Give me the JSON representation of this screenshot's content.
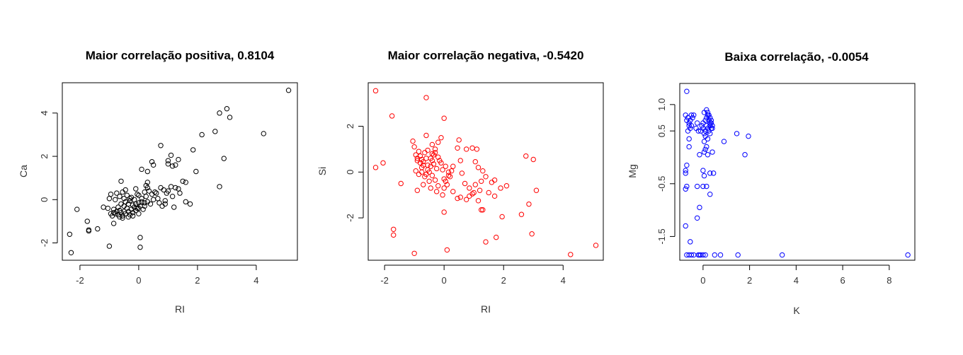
{
  "chart_data": [
    {
      "type": "scatter",
      "title": "Maior correlação positiva, 0.8104",
      "xlabel": "RI",
      "ylabel": "Ca",
      "color": "#000000",
      "xlim": [
        -2.6,
        5.4
      ],
      "ylim": [
        -2.8,
        5.4
      ],
      "xticks": [
        "-2",
        "0",
        "2",
        "4"
      ],
      "yticks": [
        "-2",
        "0",
        "2",
        "4"
      ],
      "points": [
        [
          5.1,
          5.05
        ],
        [
          3.0,
          4.2
        ],
        [
          3.1,
          3.8
        ],
        [
          2.75,
          4.0
        ],
        [
          4.25,
          3.05
        ],
        [
          2.6,
          3.15
        ],
        [
          2.15,
          3.0
        ],
        [
          2.9,
          1.9
        ],
        [
          2.75,
          0.6
        ],
        [
          1.85,
          2.3
        ],
        [
          1.95,
          1.3
        ],
        [
          1.6,
          0.8
        ],
        [
          1.75,
          -0.2
        ],
        [
          1.6,
          -0.1
        ],
        [
          0.75,
          2.5
        ],
        [
          1.0,
          1.65
        ],
        [
          1.15,
          1.55
        ],
        [
          1.35,
          1.85
        ],
        [
          1.25,
          1.6
        ],
        [
          1.0,
          1.8
        ],
        [
          1.1,
          2.05
        ],
        [
          0.45,
          1.75
        ],
        [
          0.5,
          1.6
        ],
        [
          0.3,
          1.3
        ],
        [
          0.1,
          1.4
        ],
        [
          0.75,
          0.55
        ],
        [
          0.85,
          0.45
        ],
        [
          1.0,
          0.4
        ],
        [
          1.1,
          0.6
        ],
        [
          1.25,
          0.55
        ],
        [
          1.35,
          0.5
        ],
        [
          0.95,
          0.3
        ],
        [
          1.15,
          0.15
        ],
        [
          0.9,
          -0.2
        ],
        [
          1.2,
          -0.35
        ],
        [
          0.8,
          -0.3
        ],
        [
          0.7,
          -0.15
        ],
        [
          0.5,
          0.0
        ],
        [
          0.6,
          0.3
        ],
        [
          0.3,
          0.55
        ],
        [
          0.2,
          0.35
        ],
        [
          0.45,
          0.25
        ],
        [
          0.3,
          -0.1
        ],
        [
          0.2,
          -0.3
        ],
        [
          0.0,
          0.2
        ],
        [
          0.1,
          -0.1
        ],
        [
          0.0,
          -0.4
        ],
        [
          0.05,
          -1.75
        ],
        [
          0.05,
          -2.2
        ],
        [
          -1.0,
          -2.15
        ],
        [
          -2.35,
          -1.6
        ],
        [
          -2.3,
          -2.45
        ],
        [
          -2.1,
          -0.45
        ],
        [
          -1.75,
          -1.0
        ],
        [
          -1.7,
          -1.45
        ],
        [
          -1.7,
          -1.4
        ],
        [
          -1.4,
          -1.35
        ],
        [
          -1.2,
          -0.35
        ],
        [
          -1.05,
          -0.4
        ],
        [
          -1.0,
          0.05
        ],
        [
          -0.95,
          0.25
        ],
        [
          -0.85,
          -0.45
        ],
        [
          -0.85,
          -0.6
        ],
        [
          -0.8,
          -0.65
        ],
        [
          -0.75,
          -0.55
        ],
        [
          -0.7,
          -0.7
        ],
        [
          -0.7,
          -0.35
        ],
        [
          -0.65,
          -0.5
        ],
        [
          -0.6,
          -0.2
        ],
        [
          -0.6,
          -0.6
        ],
        [
          -0.55,
          -0.75
        ],
        [
          -0.5,
          -0.3
        ],
        [
          -0.5,
          -0.55
        ],
        [
          -0.45,
          -0.65
        ],
        [
          -0.45,
          -0.1
        ],
        [
          -0.4,
          -0.4
        ],
        [
          -0.35,
          -0.55
        ],
        [
          -0.35,
          -0.2
        ],
        [
          -0.3,
          -0.7
        ],
        [
          -0.3,
          0.05
        ],
        [
          -0.25,
          -0.45
        ],
        [
          -0.2,
          -0.25
        ],
        [
          -0.2,
          -0.6
        ],
        [
          -0.15,
          -0.35
        ],
        [
          -0.15,
          0.0
        ],
        [
          -0.1,
          -0.5
        ],
        [
          -0.1,
          -0.2
        ],
        [
          -0.05,
          -0.4
        ],
        [
          0.0,
          -0.15
        ],
        [
          0.05,
          -0.3
        ],
        [
          0.1,
          0.05
        ],
        [
          0.15,
          -0.45
        ],
        [
          0.2,
          -0.15
        ],
        [
          0.25,
          0.15
        ],
        [
          -0.65,
          0.15
        ],
        [
          -0.8,
          0.0
        ],
        [
          -0.75,
          0.3
        ],
        [
          -0.55,
          0.35
        ],
        [
          -0.6,
          0.85
        ],
        [
          -0.85,
          -1.1
        ],
        [
          -0.55,
          -0.85
        ],
        [
          -0.9,
          -0.75
        ],
        [
          -0.95,
          -0.65
        ],
        [
          -0.5,
          0.05
        ],
        [
          -0.4,
          0.2
        ],
        [
          -0.25,
          0.1
        ],
        [
          -0.05,
          0.25
        ],
        [
          0.3,
          0.8
        ],
        [
          0.25,
          0.65
        ],
        [
          0.35,
          0.4
        ],
        [
          0.55,
          0.35
        ],
        [
          0.65,
          0.05
        ],
        [
          0.4,
          -0.2
        ],
        [
          -0.2,
          -0.75
        ],
        [
          0.0,
          -0.65
        ],
        [
          -0.35,
          -0.8
        ],
        [
          -0.65,
          -0.8
        ],
        [
          -0.3,
          -0.05
        ],
        [
          -0.45,
          0.45
        ],
        [
          -0.1,
          0.5
        ],
        [
          1.4,
          0.3
        ],
        [
          1.5,
          0.85
        ],
        [
          0.9,
          -0.05
        ]
      ]
    },
    {
      "type": "scatter",
      "title": "Maior correlação negativa, -0.5420",
      "xlabel": "RI",
      "ylabel": "Si",
      "color": "#ff0000",
      "xlim": [
        -2.55,
        5.35
      ],
      "ylim": [
        -3.85,
        3.9
      ],
      "xticks": [
        "-2",
        "0",
        "2",
        "4"
      ],
      "yticks": [
        "-2",
        "0",
        "2"
      ],
      "points": [
        [
          -2.3,
          3.55
        ],
        [
          -0.6,
          3.25
        ],
        [
          0.0,
          2.35
        ],
        [
          -1.75,
          2.45
        ],
        [
          -2.3,
          0.2
        ],
        [
          -2.05,
          0.4
        ],
        [
          -1.45,
          -0.5
        ],
        [
          -1.7,
          -2.5
        ],
        [
          -1.7,
          -2.75
        ],
        [
          -1.0,
          -3.55
        ],
        [
          0.1,
          -3.4
        ],
        [
          1.4,
          -3.05
        ],
        [
          4.25,
          -3.6
        ],
        [
          5.1,
          -3.2
        ],
        [
          2.95,
          -2.7
        ],
        [
          2.6,
          -1.85
        ],
        [
          1.95,
          -1.95
        ],
        [
          1.75,
          -2.85
        ],
        [
          1.25,
          -1.65
        ],
        [
          1.3,
          -1.65
        ],
        [
          1.15,
          -1.25
        ],
        [
          1.0,
          -0.9
        ],
        [
          0.85,
          -1.05
        ],
        [
          0.75,
          -1.2
        ],
        [
          0.55,
          -1.1
        ],
        [
          0.45,
          -1.15
        ],
        [
          0.3,
          -0.85
        ],
        [
          1.5,
          -0.9
        ],
        [
          1.7,
          -1.05
        ],
        [
          1.9,
          -0.7
        ],
        [
          2.1,
          -0.6
        ],
        [
          3.1,
          -0.8
        ],
        [
          2.85,
          -1.4
        ],
        [
          2.75,
          0.7
        ],
        [
          3.0,
          0.55
        ],
        [
          1.7,
          -0.35
        ],
        [
          1.6,
          -0.45
        ],
        [
          1.3,
          0.05
        ],
        [
          1.15,
          0.2
        ],
        [
          1.05,
          0.45
        ],
        [
          0.95,
          1.05
        ],
        [
          1.1,
          1.0
        ],
        [
          0.75,
          1.0
        ],
        [
          0.55,
          0.5
        ],
        [
          0.6,
          -0.05
        ],
        [
          0.7,
          -0.5
        ],
        [
          0.85,
          -0.7
        ],
        [
          0.95,
          -0.95
        ],
        [
          1.05,
          -0.55
        ],
        [
          1.2,
          -0.8
        ],
        [
          1.25,
          -0.4
        ],
        [
          1.4,
          -0.2
        ],
        [
          0.5,
          1.4
        ],
        [
          0.45,
          1.05
        ],
        [
          0.3,
          0.25
        ],
        [
          0.25,
          0.05
        ],
        [
          0.15,
          -0.15
        ],
        [
          0.05,
          -0.4
        ],
        [
          0.0,
          -0.7
        ],
        [
          -0.05,
          -1.0
        ],
        [
          -0.1,
          1.5
        ],
        [
          -0.2,
          1.3
        ],
        [
          -0.3,
          1.0
        ],
        [
          -0.35,
          0.75
        ],
        [
          -0.4,
          0.5
        ],
        [
          -0.45,
          0.25
        ],
        [
          -0.5,
          0.0
        ],
        [
          -0.55,
          0.3
        ],
        [
          -0.6,
          0.6
        ],
        [
          -0.65,
          0.85
        ],
        [
          -0.7,
          0.45
        ],
        [
          -0.75,
          0.2
        ],
        [
          -0.8,
          0.7
        ],
        [
          -0.85,
          0.9
        ],
        [
          -0.9,
          0.5
        ],
        [
          -0.95,
          0.75
        ],
        [
          -1.0,
          1.1
        ],
        [
          -1.05,
          1.35
        ],
        [
          -0.95,
          0.05
        ],
        [
          -0.85,
          -0.1
        ],
        [
          -0.75,
          0.0
        ],
        [
          -0.65,
          -0.2
        ],
        [
          -0.55,
          0.1
        ],
        [
          -0.45,
          0.6
        ],
        [
          -0.35,
          0.35
        ],
        [
          -0.25,
          0.15
        ],
        [
          -0.15,
          0.5
        ],
        [
          -0.05,
          0.1
        ],
        [
          0.0,
          -0.3
        ],
        [
          0.1,
          -0.55
        ],
        [
          0.2,
          -0.2
        ],
        [
          -0.2,
          -0.6
        ],
        [
          -0.3,
          -0.35
        ],
        [
          -0.4,
          -0.15
        ],
        [
          -0.5,
          -0.4
        ],
        [
          -0.6,
          -0.1
        ],
        [
          -0.7,
          0.3
        ],
        [
          -0.8,
          0.4
        ],
        [
          -0.9,
          0.6
        ],
        [
          -0.6,
          1.6
        ],
        [
          -0.4,
          1.2
        ],
        [
          -0.3,
          0.85
        ],
        [
          -0.2,
          0.65
        ],
        [
          -0.1,
          0.4
        ],
        [
          0.05,
          0.25
        ],
        [
          0.15,
          0.0
        ],
        [
          -0.25,
          -0.85
        ],
        [
          -0.45,
          -0.7
        ],
        [
          -0.7,
          -0.55
        ],
        [
          -0.9,
          -0.8
        ],
        [
          0.0,
          -1.75
        ],
        [
          -0.55,
          0.95
        ],
        [
          -0.75,
          0.55
        ],
        [
          -0.4,
          0.8
        ]
      ]
    },
    {
      "type": "scatter",
      "title": "Baixa correlação, -0.0054",
      "xlabel": "K",
      "ylabel": "Mg",
      "color": "#0000ff",
      "xlim": [
        -1.0,
        9.1
      ],
      "ylim": [
        -1.95,
        1.4
      ],
      "xticks": [
        "0",
        "2",
        "4",
        "6",
        "8"
      ],
      "yticks": [
        "-1.5",
        "-0.5",
        "0.5",
        "1.0"
      ],
      "points": [
        [
          -0.7,
          1.25
        ],
        [
          -0.75,
          0.8
        ],
        [
          -0.7,
          0.7
        ],
        [
          -0.65,
          0.75
        ],
        [
          -0.6,
          0.65
        ],
        [
          -0.55,
          0.7
        ],
        [
          -0.5,
          0.8
        ],
        [
          -0.45,
          0.75
        ],
        [
          -0.5,
          0.6
        ],
        [
          -0.6,
          0.6
        ],
        [
          -0.4,
          0.8
        ],
        [
          -0.65,
          0.5
        ],
        [
          -0.6,
          0.35
        ],
        [
          -0.6,
          0.2
        ],
        [
          -0.7,
          -0.15
        ],
        [
          -0.75,
          -0.25
        ],
        [
          -0.75,
          -0.3
        ],
        [
          -0.7,
          -0.55
        ],
        [
          -0.75,
          -0.6
        ],
        [
          -0.75,
          -1.3
        ],
        [
          -0.55,
          -1.6
        ],
        [
          -0.7,
          -1.85
        ],
        [
          -0.6,
          -1.85
        ],
        [
          -0.5,
          -1.85
        ],
        [
          -0.4,
          -1.85
        ],
        [
          -0.2,
          -1.85
        ],
        [
          -0.15,
          -1.85
        ],
        [
          -0.1,
          -1.85
        ],
        [
          0.0,
          -1.85
        ],
        [
          0.1,
          -1.85
        ],
        [
          0.5,
          -1.85
        ],
        [
          0.75,
          -1.85
        ],
        [
          1.5,
          -1.85
        ],
        [
          3.4,
          -1.85
        ],
        [
          8.8,
          -1.85
        ],
        [
          -0.25,
          -1.15
        ],
        [
          -0.15,
          -0.95
        ],
        [
          -0.25,
          -0.55
        ],
        [
          0.0,
          -0.55
        ],
        [
          0.15,
          -0.55
        ],
        [
          0.3,
          -0.7
        ],
        [
          0.0,
          -0.25
        ],
        [
          0.05,
          -0.35
        ],
        [
          0.3,
          -0.3
        ],
        [
          -0.15,
          0.05
        ],
        [
          -0.2,
          0.5
        ],
        [
          -0.1,
          0.5
        ],
        [
          0.0,
          0.55
        ],
        [
          0.05,
          0.45
        ],
        [
          0.1,
          0.5
        ],
        [
          0.15,
          0.6
        ],
        [
          0.2,
          0.55
        ],
        [
          0.25,
          0.5
        ],
        [
          0.3,
          0.6
        ],
        [
          0.35,
          0.55
        ],
        [
          0.1,
          0.7
        ],
        [
          0.15,
          0.75
        ],
        [
          0.2,
          0.8
        ],
        [
          0.25,
          0.7
        ],
        [
          0.3,
          0.65
        ],
        [
          0.05,
          0.85
        ],
        [
          0.15,
          0.9
        ],
        [
          0.2,
          0.85
        ],
        [
          0.25,
          0.8
        ],
        [
          0.3,
          0.75
        ],
        [
          0.35,
          0.7
        ],
        [
          0.1,
          0.4
        ],
        [
          0.2,
          0.35
        ],
        [
          0.05,
          0.3
        ],
        [
          0.3,
          0.45
        ],
        [
          0.35,
          0.65
        ],
        [
          0.4,
          0.6
        ],
        [
          0.4,
          0.55
        ],
        [
          0.15,
          0.2
        ],
        [
          0.2,
          0.05
        ],
        [
          0.05,
          0.1
        ],
        [
          0.1,
          0.15
        ],
        [
          0.4,
          0.1
        ],
        [
          0.45,
          -0.3
        ],
        [
          -0.3,
          0.55
        ],
        [
          -0.25,
          0.65
        ],
        [
          -0.55,
          0.55
        ],
        [
          0.9,
          0.3
        ],
        [
          1.45,
          0.45
        ],
        [
          1.95,
          0.4
        ],
        [
          1.8,
          0.05
        ],
        [
          0.0,
          0.65
        ],
        [
          -0.05,
          0.6
        ]
      ]
    }
  ]
}
